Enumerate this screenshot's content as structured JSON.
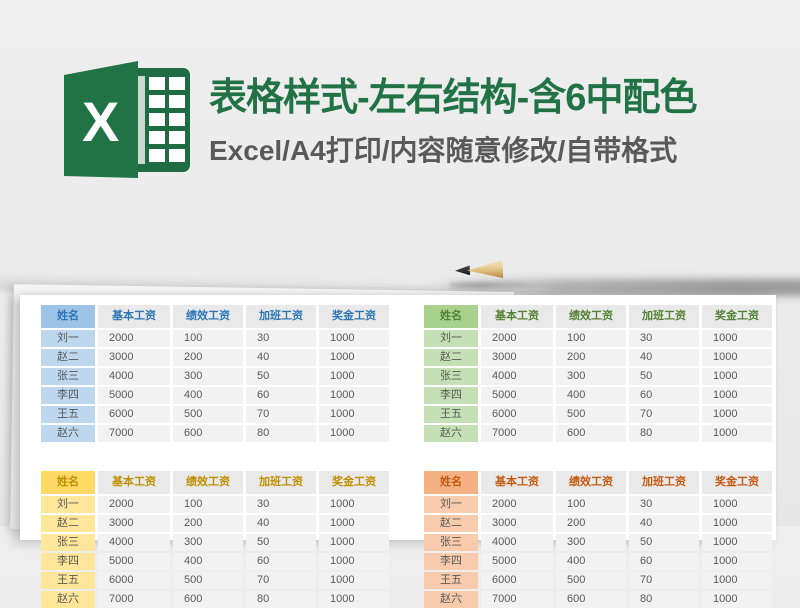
{
  "banner": {
    "title": "表格样式-左右结构-含6中配色",
    "subtitle": "Excel/A4打印/内容随意修改/自带格式",
    "logo_letter": "X",
    "title_color": "#217346",
    "subtitle_color": "#595959",
    "logo_green": "#217346"
  },
  "paper": {
    "headers": [
      "姓名",
      "基本工资",
      "绩效工资",
      "加班工资",
      "奖金工资"
    ],
    "rows": [
      {
        "name": "刘一",
        "values": [
          "2000",
          "100",
          "30",
          "1000"
        ]
      },
      {
        "name": "赵二",
        "values": [
          "3000",
          "200",
          "40",
          "1000"
        ]
      },
      {
        "name": "张三",
        "values": [
          "4000",
          "300",
          "50",
          "1000"
        ]
      },
      {
        "name": "李四",
        "values": [
          "5000",
          "400",
          "60",
          "1000"
        ]
      },
      {
        "name": "王五",
        "values": [
          "6000",
          "500",
          "70",
          "1000"
        ]
      },
      {
        "name": "赵六",
        "values": [
          "7000",
          "600",
          "80",
          "1000"
        ]
      }
    ],
    "themes": [
      {
        "id": "blue",
        "header_bg": "#9dc3e6",
        "row_bg": "#bdd7ee",
        "accent_text": "#2e75b6"
      },
      {
        "id": "green",
        "header_bg": "#a9d18e",
        "row_bg": "#c5e0b4",
        "accent_text": "#538135"
      },
      {
        "id": "yellow",
        "header_bg": "#ffd966",
        "row_bg": "#ffe699",
        "accent_text": "#bf8f00"
      },
      {
        "id": "orange",
        "header_bg": "#f4b183",
        "row_bg": "#f8cbad",
        "accent_text": "#c55a11"
      }
    ],
    "value_header_bg": "#e9e9e9",
    "value_cell_bg": "#f2f2f2",
    "value_text": "#595959"
  }
}
